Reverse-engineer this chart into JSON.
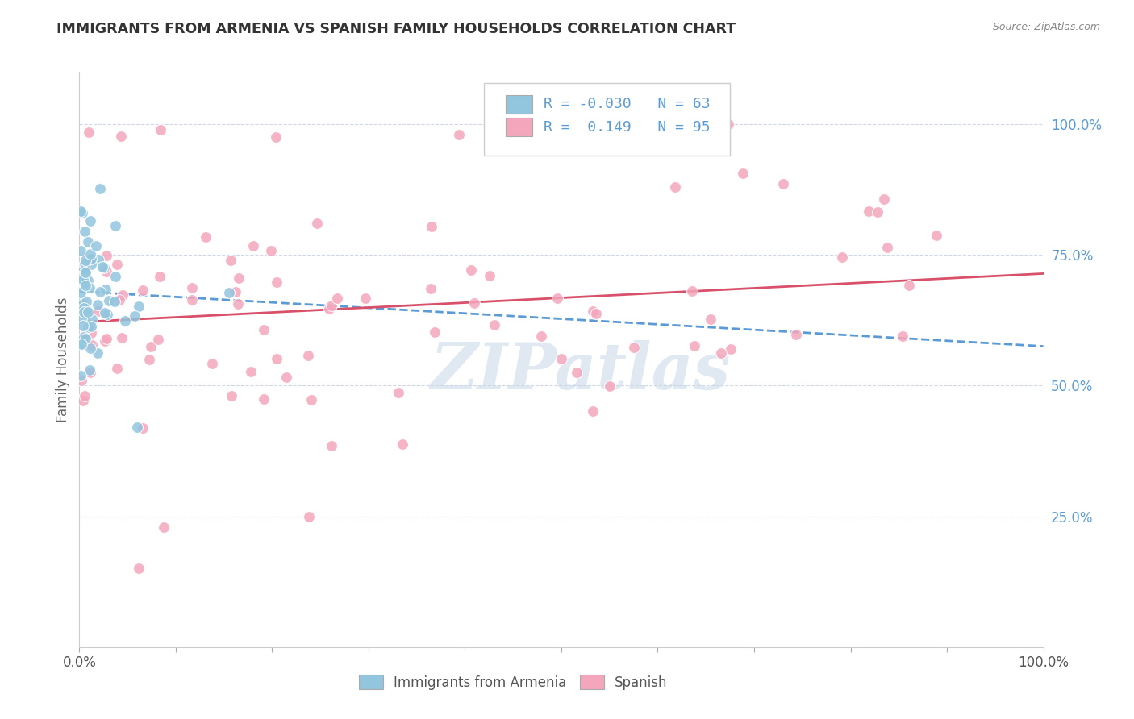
{
  "title": "IMMIGRANTS FROM ARMENIA VS SPANISH FAMILY HOUSEHOLDS CORRELATION CHART",
  "source": "Source: ZipAtlas.com",
  "ylabel": "Family Households",
  "legend_label1": "Immigrants from Armenia",
  "legend_label2": "Spanish",
  "R1": -0.03,
  "N1": 63,
  "R2": 0.149,
  "N2": 95,
  "blue_color": "#92c5de",
  "pink_color": "#f4a6bc",
  "blue_line_color": "#5b9bd5",
  "pink_line_color": "#d9506a",
  "ytick_color": "#5b9bd5",
  "ytick_labels": [
    "100.0%",
    "75.0%",
    "50.0%",
    "25.0%"
  ],
  "ytick_values": [
    1.0,
    0.75,
    0.5,
    0.25
  ],
  "watermark": "ZIPatlas",
  "background_color": "#ffffff",
  "grid_color": "#d0d8e8",
  "title_color": "#333333",
  "source_color": "#888888"
}
